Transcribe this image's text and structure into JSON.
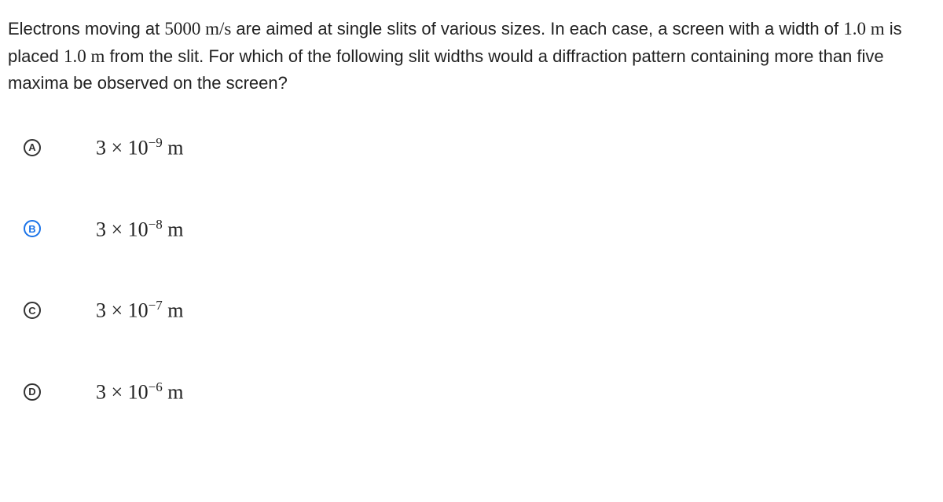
{
  "question": {
    "text_parts": [
      "Electrons moving at ",
      " are aimed at single slits of various sizes. In each case, a screen with a width of ",
      " is placed ",
      " from the slit. For which of the following slit widths would a diffraction pattern containing more than five maxima be observed on the screen?"
    ],
    "math_parts": {
      "velocity": "5000 m/s",
      "width": "1.0 m",
      "distance": "1.0 m"
    },
    "text_color": "#222222",
    "font_size": 22
  },
  "options": [
    {
      "letter": "A",
      "selected": false,
      "coefficient": "3",
      "exponent": "−9",
      "unit": "m"
    },
    {
      "letter": "B",
      "selected": true,
      "coefficient": "3",
      "exponent": "−8",
      "unit": "m"
    },
    {
      "letter": "C",
      "selected": false,
      "coefficient": "3",
      "exponent": "−7",
      "unit": "m"
    },
    {
      "letter": "D",
      "selected": false,
      "coefficient": "3",
      "exponent": "−6",
      "unit": "m"
    }
  ],
  "styling": {
    "background_color": "#ffffff",
    "selected_color": "#1a73e8",
    "unselected_color": "#333333",
    "option_font_size": 26,
    "option_spacing": 72,
    "letter_circle_size": 22,
    "math_font": "Times New Roman"
  }
}
